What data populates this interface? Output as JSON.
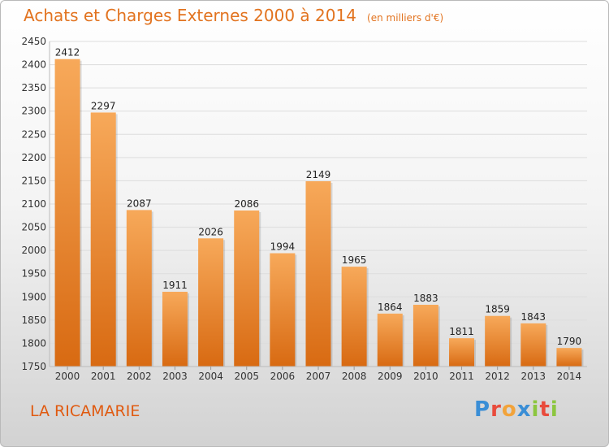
{
  "header": {
    "title": "Achats et Charges Externes 2000 à 2014",
    "unit": "(en milliers d'€)"
  },
  "commune": "LA RICAMARIE",
  "brand": {
    "letters": [
      "P",
      "r",
      "o",
      "x",
      "i",
      "t",
      "i"
    ],
    "colors": [
      "#3a8ed6",
      "#e94b3c",
      "#f2a33a",
      "#3a8ed6",
      "#8cc63f",
      "#e94b3c",
      "#8cc63f"
    ]
  },
  "colors": {
    "bar_light": "#f7a95a",
    "bar_dark": "#d86a12",
    "title": "#e2731f"
  },
  "chart_data": {
    "type": "bar",
    "title": "Achats et Charges Externes 2000 à 2014",
    "categories": [
      "2000",
      "2001",
      "2002",
      "2003",
      "2004",
      "2005",
      "2006",
      "2007",
      "2008",
      "2009",
      "2010",
      "2011",
      "2012",
      "2013",
      "2014"
    ],
    "values": [
      2412,
      2297,
      2087,
      1911,
      2026,
      2086,
      1994,
      2149,
      1965,
      1864,
      1883,
      1811,
      1859,
      1843,
      1790
    ],
    "ylim": [
      1750,
      2450
    ],
    "yticks": [
      1750,
      1800,
      1850,
      1900,
      1950,
      2000,
      2050,
      2100,
      2150,
      2200,
      2250,
      2300,
      2350,
      2400,
      2450
    ],
    "grid": true,
    "legend": "none"
  }
}
